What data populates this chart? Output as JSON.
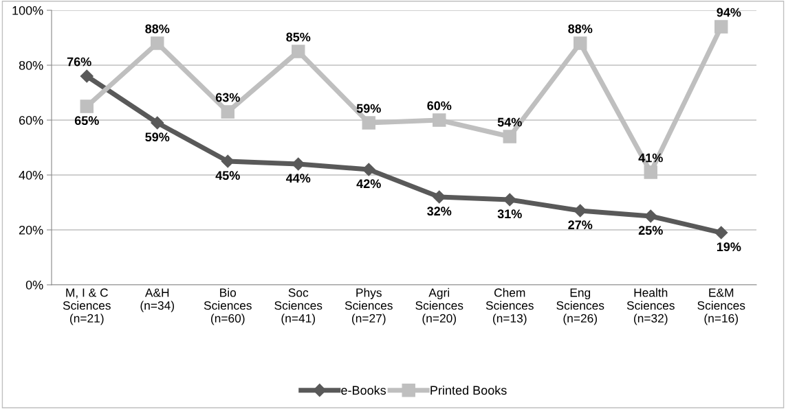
{
  "chart_data": {
    "type": "line",
    "categories": [
      "M, I & C\nSciences\n(n=21)",
      "A&H\n(n=34)",
      "Bio\nSciences\n(n=60)",
      "Soc\nSciences\n(n=41)",
      "Phys\nSciences\n(n=27)",
      "Agri\nSciences\n(n=20)",
      "Chem\nSciences\n(n=13)",
      "Eng\nSciences\n(n=26)",
      "Health\nSciences\n(n=32)",
      "E&M\nSciences\n(n=16)"
    ],
    "series": [
      {
        "name": "e-Books",
        "color": "#595959",
        "marker": "diamond",
        "values": [
          76,
          59,
          45,
          44,
          42,
          32,
          31,
          27,
          25,
          19
        ],
        "value_labels": [
          "76%",
          "59%",
          "45%",
          "44%",
          "42%",
          "32%",
          "31%",
          "27%",
          "25%",
          "19%"
        ]
      },
      {
        "name": "Printed Books",
        "color": "#bfbfbf",
        "marker": "square",
        "values": [
          65,
          88,
          63,
          85,
          59,
          60,
          54,
          88,
          41,
          94
        ],
        "value_labels": [
          "65%",
          "88%",
          "63%",
          "85%",
          "59%",
          "60%",
          "54%",
          "88%",
          "41%",
          "94%"
        ]
      }
    ],
    "ylim": [
      0,
      100
    ],
    "yticks": [
      {
        "value": 0,
        "label": "0%"
      },
      {
        "value": 20,
        "label": "20%"
      },
      {
        "value": 40,
        "label": "40%"
      },
      {
        "value": 60,
        "label": "60%"
      },
      {
        "value": 80,
        "label": "80%"
      },
      {
        "value": 100,
        "label": "100%"
      }
    ],
    "grid": "y",
    "legend": "bottom",
    "line_style": "solid"
  }
}
